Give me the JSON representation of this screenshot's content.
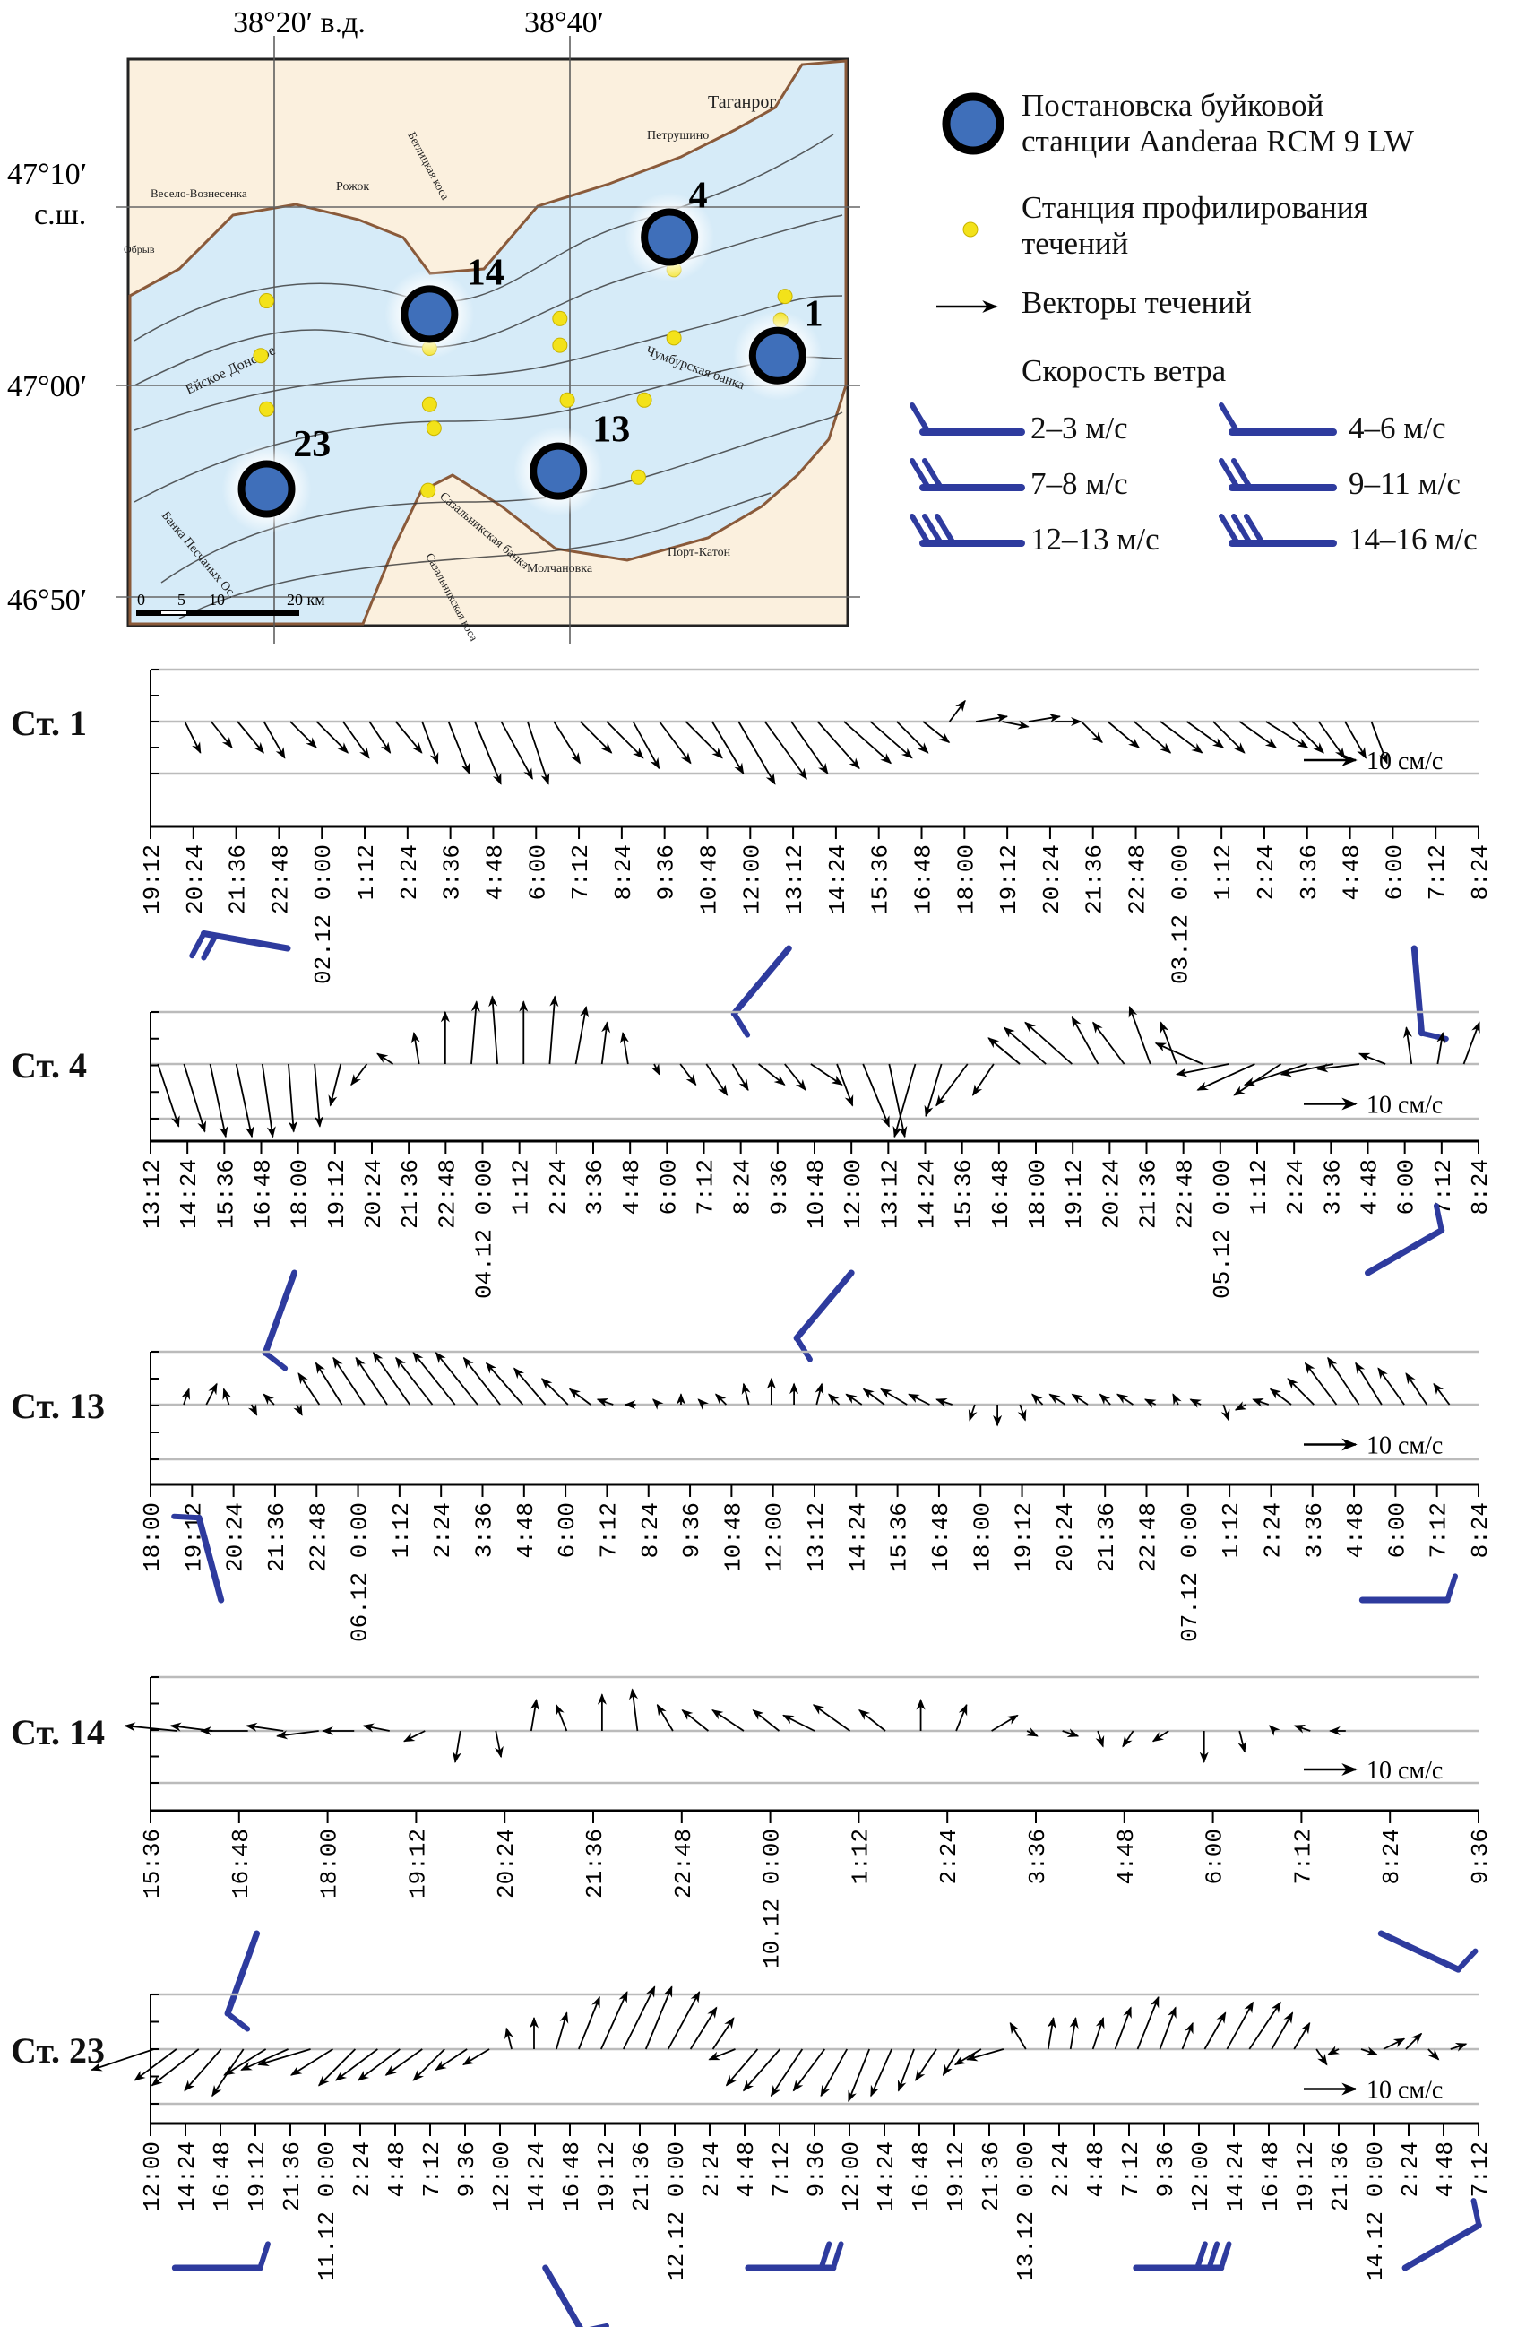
{
  "map": {
    "lon_labels": [
      "38°20′ в.д.",
      "38°40′"
    ],
    "lat_labels": [
      "47°10′",
      "с.ш.",
      "47°00′",
      "46°50′"
    ],
    "places": [
      "Таганрог",
      "Петрушино",
      "Весело-Вознесенка",
      "Рожок",
      "Обрыв",
      "Беглицкая коса",
      "Порт-Катон",
      "Молчановка",
      "Сазальникская коса",
      "Чумбурская банка",
      "Сазальникская банка",
      "Банка Песчаных Ос.",
      "Ейское Донское"
    ],
    "scale_labels": [
      "0",
      "5",
      "10",
      "20 км"
    ],
    "moorings": [
      "4",
      "14",
      "1",
      "13",
      "23"
    ],
    "colors": {
      "land": "#fbf0de",
      "sea": "#d6ebf8",
      "mooring": "#3f6fba",
      "profiling": "#f3e21a",
      "coast": "#8a5a3a"
    }
  },
  "legend": {
    "mooring": [
      "Постановска буйковой",
      "станции Aanderaa RCM 9 LW"
    ],
    "profiling": [
      "Станция профилирования",
      "течений"
    ],
    "vectors": "Векторы течений",
    "wind_title": "Скорость ветра",
    "wind_classes": [
      {
        "label": "2–3 м/с",
        "barbs": 1
      },
      {
        "label": "4–6 м/с",
        "barbs": 1
      },
      {
        "label": "7–8 м/с",
        "barbs": 2
      },
      {
        "label": "9–11 м/с",
        "barbs": 2
      },
      {
        "label": "12–13 м/с",
        "barbs": 3
      },
      {
        "label": "14–16 м/с",
        "barbs": 3
      }
    ],
    "barb_color": "#2e3b9e"
  },
  "chart_data": [
    {
      "type": "vector-timeseries",
      "station": "Ст. 1",
      "scale_label": "10 см/с",
      "scale_value": 10,
      "x_ticks": [
        "19:12",
        "20:24",
        "21:36",
        "22:48",
        "02.12 0:00",
        "1:12",
        "2:24",
        "3:36",
        "4:48",
        "6:00",
        "7:12",
        "8:24",
        "9:36",
        "10:48",
        "12:00",
        "13:12",
        "14:24",
        "15:36",
        "16:48",
        "18:00",
        "19:12",
        "20:24",
        "21:36",
        "22:48",
        "03.12 0:00",
        "1:12",
        "2:24",
        "3:36",
        "4:48",
        "6:00",
        "7:12",
        "8:24"
      ],
      "vectors_uv": [
        [
          3,
          -6
        ],
        [
          4,
          -5
        ],
        [
          5,
          -6
        ],
        [
          4,
          -7
        ],
        [
          5,
          -5
        ],
        [
          6,
          -6
        ],
        [
          5,
          -7
        ],
        [
          4,
          -6
        ],
        [
          5,
          -6
        ],
        [
          3,
          -8
        ],
        [
          4,
          -10
        ],
        [
          5,
          -12
        ],
        [
          6,
          -11
        ],
        [
          4,
          -12
        ],
        [
          5,
          -8
        ],
        [
          6,
          -6
        ],
        [
          7,
          -7
        ],
        [
          5,
          -9
        ],
        [
          6,
          -8
        ],
        [
          7,
          -7
        ],
        [
          6,
          -10
        ],
        [
          7,
          -12
        ],
        [
          8,
          -11
        ],
        [
          7,
          -10
        ],
        [
          8,
          -9
        ],
        [
          9,
          -8
        ],
        [
          8,
          -7
        ],
        [
          6,
          -6
        ],
        [
          5,
          -4
        ],
        [
          3,
          4
        ],
        [
          6,
          1
        ],
        [
          5,
          -1
        ],
        [
          6,
          1
        ],
        [
          5,
          0
        ],
        [
          4,
          -4
        ],
        [
          6,
          -5
        ],
        [
          7,
          -6
        ],
        [
          8,
          -6
        ],
        [
          7,
          -5
        ],
        [
          6,
          -6
        ],
        [
          7,
          -5
        ],
        [
          8,
          -5
        ],
        [
          6,
          -6
        ],
        [
          5,
          -7
        ],
        [
          4,
          -7
        ],
        [
          3,
          -8
        ]
      ],
      "vector_range": [
        0.8,
        28.5
      ],
      "wind": [
        {
          "tick": 3.2,
          "dir": 280,
          "barbs": 2
        },
        {
          "tick": 14.9,
          "dir": 220,
          "barbs": 1
        },
        {
          "tick": 29.5,
          "dir": 175,
          "barbs": 1
        }
      ]
    },
    {
      "type": "vector-timeseries",
      "station": "Ст. 4",
      "scale_label": "10 см/с",
      "scale_value": 10,
      "x_ticks": [
        "13:12",
        "14:24",
        "15:36",
        "16:48",
        "18:00",
        "19:12",
        "20:24",
        "21:36",
        "22:48",
        "04.12 0:00",
        "1:12",
        "2:24",
        "3:36",
        "4:48",
        "6:00",
        "7:12",
        "8:24",
        "9:36",
        "10:48",
        "12:00",
        "13:12",
        "14:24",
        "15:36",
        "16:48",
        "18:00",
        "19:12",
        "20:24",
        "21:36",
        "22:48",
        "05.12 0:00",
        "1:12",
        "2:24",
        "3:36",
        "4:48",
        "6:00",
        "7:12",
        "8:24"
      ],
      "vectors_uv": [
        [
          4,
          -12
        ],
        [
          4,
          -13
        ],
        [
          3,
          -14
        ],
        [
          3,
          -14
        ],
        [
          2,
          -14
        ],
        [
          1,
          -13
        ],
        [
          1,
          -12
        ],
        [
          -2,
          -8
        ],
        [
          -3,
          -4
        ],
        [
          -3,
          2
        ],
        [
          -1,
          6
        ],
        [
          0,
          10
        ],
        [
          1,
          12
        ],
        [
          -1,
          13
        ],
        [
          0,
          12
        ],
        [
          1,
          13
        ],
        [
          2,
          11
        ],
        [
          1,
          8
        ],
        [
          -1,
          6
        ],
        [
          1,
          -2
        ],
        [
          3,
          -4
        ],
        [
          4,
          -6
        ],
        [
          3,
          -5
        ],
        [
          5,
          -4
        ],
        [
          4,
          -5
        ],
        [
          6,
          -4
        ],
        [
          3,
          -8
        ],
        [
          5,
          -12
        ],
        [
          3,
          -14
        ],
        [
          -4,
          -14
        ],
        [
          -3,
          -10
        ],
        [
          -6,
          -8
        ],
        [
          -4,
          -6
        ],
        [
          -6,
          5
        ],
        [
          -8,
          7
        ],
        [
          -9,
          8
        ],
        [
          -5,
          9
        ],
        [
          -6,
          8
        ],
        [
          -4,
          11
        ],
        [
          -3,
          8
        ],
        [
          -9,
          4
        ],
        [
          -10,
          -2
        ],
        [
          -11,
          -5
        ],
        [
          -9,
          -6
        ],
        [
          -12,
          -4
        ],
        [
          -10,
          -2
        ],
        [
          -8,
          -1
        ],
        [
          -5,
          2
        ],
        [
          -1,
          7
        ],
        [
          1,
          6
        ],
        [
          3,
          8
        ]
      ],
      "vector_range": [
        0.2,
        35.6
      ],
      "wind": [
        {
          "tick": 3.9,
          "dir": 200,
          "barbs": 1
        },
        {
          "tick": 19,
          "dir": 220,
          "barbs": 1
        },
        {
          "tick": 33,
          "dir": 60,
          "barbs": 1
        }
      ]
    },
    {
      "type": "vector-timeseries",
      "station": "Ст. 13",
      "scale_label": "10 см/с",
      "scale_value": 10,
      "x_ticks": [
        "18:00",
        "19:12",
        "20:24",
        "21:36",
        "22:48",
        "06.12 0:00",
        "1:12",
        "2:24",
        "3:36",
        "4:48",
        "6:00",
        "7:12",
        "8:24",
        "9:36",
        "10:48",
        "12:00",
        "13:12",
        "14:24",
        "15:36",
        "16:48",
        "18:00",
        "19:12",
        "20:24",
        "21:36",
        "22:48",
        "07.12 0:00",
        "1:12",
        "2:24",
        "3:36",
        "4:48",
        "6:00",
        "7:12",
        "8:24"
      ],
      "vectors_uv": [
        [
          1,
          3
        ],
        [
          2,
          4
        ],
        [
          -1,
          3
        ],
        [
          1,
          -2
        ],
        [
          -2,
          2
        ],
        [
          1,
          -2
        ],
        [
          -4,
          6
        ],
        [
          -5,
          8
        ],
        [
          -6,
          9
        ],
        [
          -6,
          9
        ],
        [
          -7,
          10
        ],
        [
          -7,
          9
        ],
        [
          -8,
          10
        ],
        [
          -8,
          10
        ],
        [
          -7,
          9
        ],
        [
          -7,
          8
        ],
        [
          -6,
          7
        ],
        [
          -5,
          5
        ],
        [
          -4,
          3
        ],
        [
          -3,
          1
        ],
        [
          -2,
          0
        ],
        [
          -1,
          1
        ],
        [
          0,
          2
        ],
        [
          -1,
          1
        ],
        [
          -2,
          2
        ],
        [
          -1,
          4
        ],
        [
          0,
          5
        ],
        [
          0,
          4
        ],
        [
          1,
          4
        ],
        [
          -2,
          2
        ],
        [
          -3,
          2
        ],
        [
          -4,
          3
        ],
        [
          -5,
          3
        ],
        [
          -4,
          2
        ],
        [
          -3,
          1
        ],
        [
          -1,
          -3
        ],
        [
          0,
          -4
        ],
        [
          1,
          -3
        ],
        [
          -2,
          2
        ],
        [
          -3,
          2
        ],
        [
          -3,
          2
        ],
        [
          -2,
          2
        ],
        [
          -3,
          2
        ],
        [
          -2,
          1
        ],
        [
          -1,
          2
        ],
        [
          -2,
          1
        ],
        [
          1,
          -3
        ],
        [
          -2,
          -1
        ],
        [
          -3,
          1
        ],
        [
          -4,
          3
        ],
        [
          -5,
          5
        ],
        [
          -6,
          8
        ],
        [
          -6,
          9
        ],
        [
          -5,
          8
        ],
        [
          -5,
          7
        ],
        [
          -4,
          6
        ],
        [
          -3,
          4
        ]
      ],
      "vector_range": [
        0.8,
        31.3
      ],
      "wind": [
        {
          "tick": 1.7,
          "dir": 345,
          "barbs": 1
        },
        {
          "tick": 29.2,
          "dir": 90,
          "barbs": 1
        }
      ]
    },
    {
      "type": "vector-timeseries",
      "station": "Ст. 14",
      "scale_label": "10 см/с",
      "scale_value": 10,
      "x_ticks": [
        "15:36",
        "16:48",
        "18:00",
        "19:12",
        "20:24",
        "21:36",
        "22:48",
        "10.12 0:00",
        "1:12",
        "2:24",
        "3:36",
        "4:48",
        "6:00",
        "7:12",
        "8:24",
        "9:36"
      ],
      "vectors_uv": [
        [
          -10,
          1
        ],
        [
          -8,
          1
        ],
        [
          -9,
          0
        ],
        [
          -7,
          1
        ],
        [
          -8,
          -1
        ],
        [
          -6,
          0
        ],
        [
          -5,
          1
        ],
        [
          -4,
          -2
        ],
        [
          -1,
          -6
        ],
        [
          1,
          -5
        ],
        [
          1,
          6
        ],
        [
          -2,
          5
        ],
        [
          0,
          7
        ],
        [
          -1,
          8
        ],
        [
          -3,
          5
        ],
        [
          -5,
          4
        ],
        [
          -6,
          4
        ],
        [
          -5,
          4
        ],
        [
          -6,
          3
        ],
        [
          -7,
          5
        ],
        [
          -5,
          4
        ],
        [
          0,
          6
        ],
        [
          2,
          5
        ],
        [
          5,
          3
        ],
        [
          2,
          -1
        ],
        [
          3,
          -1
        ],
        [
          1,
          -3
        ],
        [
          -2,
          -3
        ],
        [
          -3,
          -2
        ],
        [
          0,
          -6
        ],
        [
          1,
          -4
        ],
        [
          -1,
          1
        ],
        [
          -3,
          1
        ],
        [
          -3,
          0
        ]
      ],
      "vector_range": [
        0.3,
        13.5
      ],
      "wind": [
        {
          "tick": 1.2,
          "dir": 200,
          "barbs": 1
        },
        {
          "tick": 13.9,
          "dir": 115,
          "barbs": 1
        }
      ]
    },
    {
      "type": "vector-timeseries",
      "station": "Ст. 23",
      "scale_label": "10 см/с",
      "scale_value": 10,
      "x_ticks": [
        "12:00",
        "14:24",
        "16:48",
        "19:12",
        "21:36",
        "11.12 0:00",
        "2:24",
        "4:48",
        "7:12",
        "9:36",
        "12:00",
        "14:24",
        "16:48",
        "19:12",
        "21:36",
        "12.12 0:00",
        "2:24",
        "4:48",
        "7:12",
        "9:36",
        "12:00",
        "14:24",
        "16:48",
        "19:12",
        "21:36",
        "13.12 0:00",
        "2:24",
        "4:48",
        "7:12",
        "9:36",
        "12:00",
        "14:24",
        "16:48",
        "19:12",
        "21:36",
        "14.12 0:00",
        "2:24",
        "4:48",
        "7:12"
      ],
      "vectors_uv": [
        [
          -12,
          -4
        ],
        [
          -8,
          -6
        ],
        [
          -9,
          -7
        ],
        [
          -7,
          -8
        ],
        [
          -6,
          -9
        ],
        [
          -8,
          -5
        ],
        [
          -9,
          -4
        ],
        [
          -10,
          -3
        ],
        [
          -8,
          -5
        ],
        [
          -7,
          -7
        ],
        [
          -8,
          -6
        ],
        [
          -8,
          -6
        ],
        [
          -7,
          -5
        ],
        [
          -6,
          -6
        ],
        [
          -6,
          -4
        ],
        [
          -5,
          -3
        ],
        [
          -1,
          4
        ],
        [
          0,
          6
        ],
        [
          2,
          7
        ],
        [
          4,
          10
        ],
        [
          5,
          11
        ],
        [
          6,
          12
        ],
        [
          5,
          12
        ],
        [
          6,
          11
        ],
        [
          5,
          8
        ],
        [
          4,
          6
        ],
        [
          -5,
          -2
        ],
        [
          -6,
          -7
        ],
        [
          -7,
          -8
        ],
        [
          -6,
          -9
        ],
        [
          -6,
          -8
        ],
        [
          -5,
          -9
        ],
        [
          -4,
          -10
        ],
        [
          -4,
          -9
        ],
        [
          -3,
          -8
        ],
        [
          -4,
          -6
        ],
        [
          -3,
          -5
        ],
        [
          -5,
          -3
        ],
        [
          -7,
          -2
        ],
        [
          -3,
          5
        ],
        [
          1,
          6
        ],
        [
          1,
          6
        ],
        [
          2,
          6
        ],
        [
          3,
          8
        ],
        [
          4,
          10
        ],
        [
          3,
          8
        ],
        [
          2,
          5
        ],
        [
          4,
          7
        ],
        [
          5,
          9
        ],
        [
          6,
          9
        ],
        [
          4,
          7
        ],
        [
          3,
          5
        ],
        [
          2,
          -3
        ],
        [
          -2,
          -1
        ],
        [
          3,
          -1
        ],
        [
          4,
          2
        ],
        [
          3,
          3
        ],
        [
          2,
          -2
        ],
        [
          3,
          1
        ]
      ],
      "vector_range": [
        0.1,
        37.2
      ],
      "wind": [
        {
          "tick": 0.7,
          "dir": 90,
          "barbs": 1
        },
        {
          "tick": 11.3,
          "dir": 150,
          "barbs": 2
        },
        {
          "tick": 17.1,
          "dir": 90,
          "barbs": 2
        },
        {
          "tick": 28.2,
          "dir": 90,
          "barbs": 3
        },
        {
          "tick": 35.9,
          "dir": 60,
          "barbs": 1
        }
      ]
    }
  ]
}
